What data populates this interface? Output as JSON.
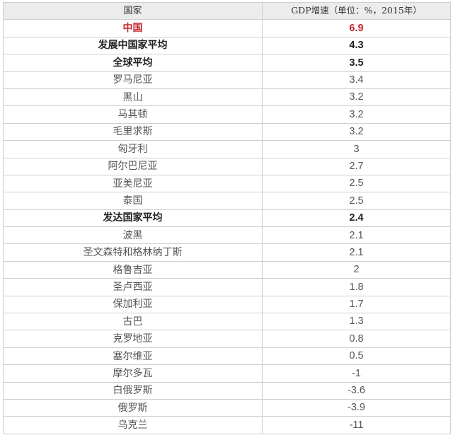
{
  "table": {
    "headers": {
      "country": "国家",
      "gdp": "GDP增速（单位：%，2015年）"
    },
    "colors": {
      "highlight": "#c1272d",
      "header_bg": "#ececec",
      "border": "#cfcfcf"
    },
    "rows": [
      {
        "country": "中国",
        "gdp": "6.9",
        "style": "highlight"
      },
      {
        "country": "发展中国家平均",
        "gdp": "4.3",
        "style": "bold"
      },
      {
        "country": "全球平均",
        "gdp": "3.5",
        "style": "bold"
      },
      {
        "country": "罗马尼亚",
        "gdp": "3.4",
        "style": "normal"
      },
      {
        "country": "黑山",
        "gdp": "3.2",
        "style": "normal"
      },
      {
        "country": "马其顿",
        "gdp": "3.2",
        "style": "normal"
      },
      {
        "country": "毛里求斯",
        "gdp": "3.2",
        "style": "normal"
      },
      {
        "country": "匈牙利",
        "gdp": "3",
        "style": "normal"
      },
      {
        "country": "阿尔巴尼亚",
        "gdp": "2.7",
        "style": "normal"
      },
      {
        "country": "亚美尼亚",
        "gdp": "2.5",
        "style": "normal"
      },
      {
        "country": "泰国",
        "gdp": "2.5",
        "style": "normal"
      },
      {
        "country": "发达国家平均",
        "gdp": "2.4",
        "style": "bold"
      },
      {
        "country": "波黑",
        "gdp": "2.1",
        "style": "normal"
      },
      {
        "country": "圣文森特和格林纳丁斯",
        "gdp": "2.1",
        "style": "normal"
      },
      {
        "country": "格鲁吉亚",
        "gdp": "2",
        "style": "normal"
      },
      {
        "country": "圣卢西亚",
        "gdp": "1.8",
        "style": "normal"
      },
      {
        "country": "保加利亚",
        "gdp": "1.7",
        "style": "normal"
      },
      {
        "country": "古巴",
        "gdp": "1.3",
        "style": "normal"
      },
      {
        "country": "克罗地亚",
        "gdp": "0.8",
        "style": "normal"
      },
      {
        "country": "塞尔维亚",
        "gdp": "0.5",
        "style": "normal"
      },
      {
        "country": "摩尔多瓦",
        "gdp": "-1",
        "style": "normal"
      },
      {
        "country": "白俄罗斯",
        "gdp": "-3.6",
        "style": "normal"
      },
      {
        "country": "俄罗斯",
        "gdp": "-3.9",
        "style": "normal"
      },
      {
        "country": "乌克兰",
        "gdp": "-11",
        "style": "normal"
      }
    ]
  }
}
